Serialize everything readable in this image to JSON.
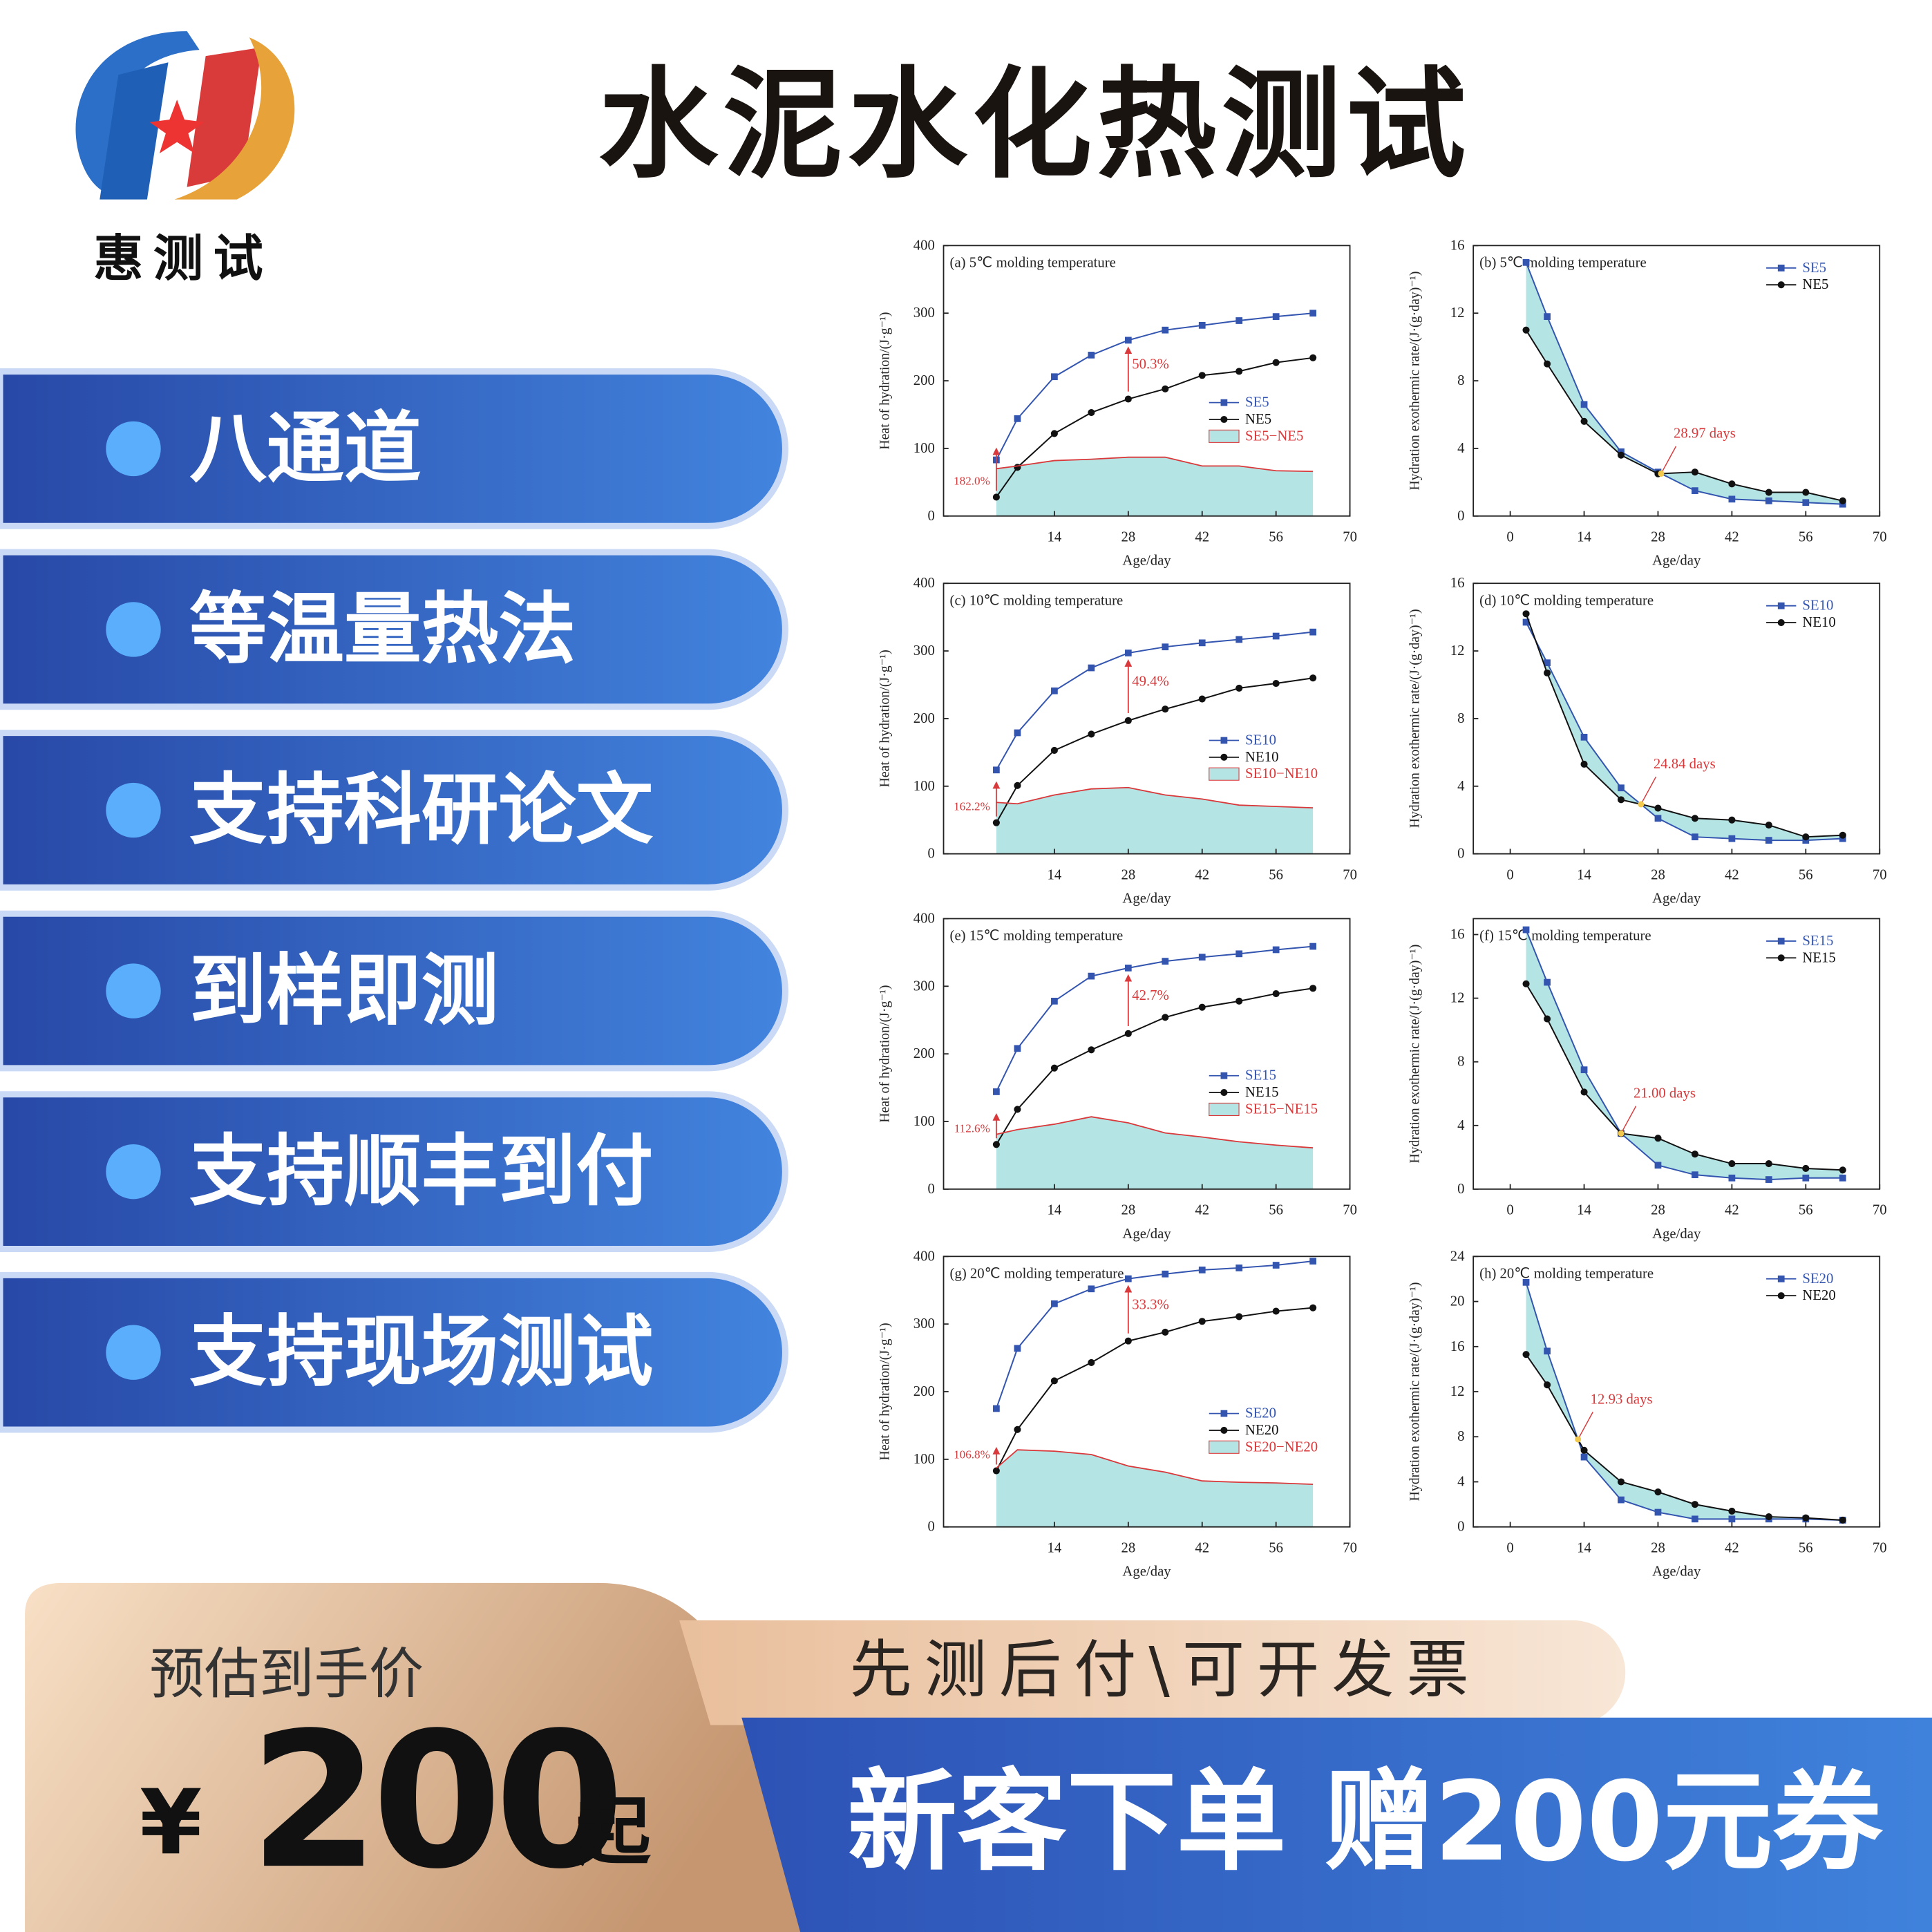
{
  "logo": {
    "text": "惠测试"
  },
  "header": {
    "title": "水泥水化热测试"
  },
  "features": [
    "八通道",
    "等温量热法",
    "支持科研论文",
    "到样即测",
    "支持顺丰到付",
    "支持现场测试"
  ],
  "price": {
    "label": "预估到手价",
    "currency": "¥",
    "amount": 200,
    "suffix": "起"
  },
  "promo": {
    "note": "先测后付\\可开发票",
    "offer": "新客下单 赠200元券"
  },
  "chart_data": [
    {
      "type": "line",
      "title": "(a) 5℃ molding temperature",
      "x_label": "Age/day",
      "y_label": "Heat of hydration/(J·g⁻¹)",
      "x": [
        3,
        7,
        14,
        21,
        28,
        35,
        42,
        49,
        56,
        63
      ],
      "xlim": [
        -7,
        70
      ],
      "xticks": [
        14,
        28,
        42,
        56,
        70
      ],
      "ylim": [
        0,
        400
      ],
      "yticks": [
        0,
        100,
        200,
        300,
        400
      ],
      "legend": "center right",
      "series": [
        {
          "name": "SE5",
          "color": "#3355b0",
          "marker": "square",
          "values": [
            83,
            144,
            206,
            238,
            260,
            275,
            282,
            289,
            295,
            300
          ]
        },
        {
          "name": "NE5",
          "color": "#111111",
          "marker": "circle",
          "values": [
            28,
            72,
            122,
            153,
            173,
            188,
            208,
            214,
            227,
            234
          ]
        },
        {
          "name": "SE5−NE5",
          "color": "#d9393b",
          "fill": "#b5e4e4",
          "kind": "area",
          "values": [
            70,
            74,
            82,
            84,
            87,
            87,
            74,
            74,
            67,
            66
          ]
        }
      ],
      "annotations": [
        "50.3%",
        "182.0%"
      ]
    },
    {
      "type": "line",
      "title": "(b) 5℃ molding temperature",
      "x_label": "Age/day",
      "y_label": "Hydration exothermic rate/(J·(g·day)⁻¹)",
      "x": [
        3,
        7,
        14,
        21,
        28,
        35,
        42,
        49,
        56,
        63
      ],
      "xlim": [
        -7,
        70
      ],
      "xticks": [
        0,
        14,
        28,
        42,
        56,
        70
      ],
      "ylim": [
        0,
        16
      ],
      "yticks": [
        0,
        4,
        8,
        12,
        16
      ],
      "legend": "upper right",
      "fill_between": "#b5e4e4",
      "series": [
        {
          "name": "SE5",
          "color": "#3355b0",
          "marker": "square",
          "values": [
            15.0,
            11.8,
            6.6,
            3.8,
            2.6,
            1.5,
            1.0,
            0.9,
            0.8,
            0.7
          ]
        },
        {
          "name": "NE5",
          "color": "#111111",
          "marker": "circle",
          "values": [
            11.0,
            9.0,
            5.6,
            3.6,
            2.5,
            2.6,
            1.9,
            1.4,
            1.4,
            0.9
          ]
        }
      ],
      "annotations": [
        "28.97 days"
      ]
    },
    {
      "type": "line",
      "title": "(c) 10℃ molding temperature",
      "x_label": "Age/day",
      "y_label": "Heat of hydration/(J·g⁻¹)",
      "x": [
        3,
        7,
        14,
        21,
        28,
        35,
        42,
        49,
        56,
        63
      ],
      "xlim": [
        -7,
        70
      ],
      "xticks": [
        14,
        28,
        42,
        56,
        70
      ],
      "ylim": [
        0,
        400
      ],
      "yticks": [
        0,
        100,
        200,
        300,
        400
      ],
      "legend": "center right",
      "series": [
        {
          "name": "SE10",
          "color": "#3355b0",
          "marker": "square",
          "values": [
            124,
            179,
            241,
            275,
            297,
            306,
            312,
            317,
            322,
            328
          ]
        },
        {
          "name": "NE10",
          "color": "#111111",
          "marker": "circle",
          "values": [
            46,
            101,
            153,
            177,
            197,
            214,
            229,
            245,
            252,
            260
          ]
        },
        {
          "name": "SE10−NE10",
          "color": "#d9393b",
          "fill": "#b5e4e4",
          "kind": "area",
          "values": [
            76,
            74,
            87,
            96,
            98,
            87,
            81,
            72,
            70,
            68
          ]
        }
      ],
      "annotations": [
        "49.4%",
        "162.2%"
      ]
    },
    {
      "type": "line",
      "title": "(d) 10℃ molding temperature",
      "x_label": "Age/day",
      "y_label": "Hydration exothermic rate/(J·(g·day)⁻¹)",
      "x": [
        3,
        7,
        14,
        21,
        28,
        35,
        42,
        49,
        56,
        63
      ],
      "xlim": [
        -7,
        70
      ],
      "xticks": [
        0,
        14,
        28,
        42,
        56,
        70
      ],
      "ylim": [
        0,
        16
      ],
      "yticks": [
        0,
        4,
        8,
        12,
        16
      ],
      "legend": "upper right",
      "fill_between": "#b5e4e4",
      "series": [
        {
          "name": "SE10",
          "color": "#3355b0",
          "marker": "square",
          "values": [
            13.7,
            11.3,
            6.9,
            3.9,
            2.1,
            1.0,
            0.9,
            0.8,
            0.8,
            0.9
          ]
        },
        {
          "name": "NE10",
          "color": "#111111",
          "marker": "circle",
          "values": [
            14.2,
            10.7,
            5.3,
            3.2,
            2.7,
            2.1,
            2.0,
            1.7,
            1.0,
            1.1
          ]
        }
      ],
      "annotations": [
        "24.84 days"
      ]
    },
    {
      "type": "line",
      "title": "(e) 15℃ molding temperature",
      "x_label": "Age/day",
      "y_label": "Heat of hydration/(J·g⁻¹)",
      "x": [
        3,
        7,
        14,
        21,
        28,
        35,
        42,
        49,
        56,
        63
      ],
      "xlim": [
        -7,
        70
      ],
      "xticks": [
        14,
        28,
        42,
        56,
        70
      ],
      "ylim": [
        0,
        400
      ],
      "yticks": [
        0,
        100,
        200,
        300,
        400
      ],
      "legend": "center right",
      "series": [
        {
          "name": "SE15",
          "color": "#3355b0",
          "marker": "square",
          "values": [
            144,
            208,
            278,
            315,
            327,
            337,
            343,
            348,
            354,
            359
          ]
        },
        {
          "name": "NE15",
          "color": "#111111",
          "marker": "circle",
          "values": [
            66,
            118,
            179,
            206,
            230,
            254,
            269,
            278,
            289,
            297
          ]
        },
        {
          "name": "SE15−NE15",
          "color": "#d9393b",
          "fill": "#b5e4e4",
          "kind": "area",
          "values": [
            81,
            88,
            96,
            107,
            98,
            83,
            77,
            70,
            65,
            61
          ]
        }
      ],
      "annotations": [
        "42.7%",
        "112.6%"
      ]
    },
    {
      "type": "line",
      "title": "(f) 15℃ molding temperature",
      "x_label": "Age/day",
      "y_label": "Hydration exothermic rate/(J·(g·day)⁻¹)",
      "x": [
        3,
        7,
        14,
        21,
        28,
        35,
        42,
        49,
        56,
        63
      ],
      "xlim": [
        -7,
        70
      ],
      "xticks": [
        0,
        14,
        28,
        42,
        56,
        70
      ],
      "ylim": [
        0,
        17
      ],
      "yticks": [
        0,
        4,
        8,
        12,
        16
      ],
      "legend": "upper right",
      "fill_between": "#b5e4e4",
      "series": [
        {
          "name": "SE15",
          "color": "#3355b0",
          "marker": "square",
          "values": [
            16.3,
            13.0,
            7.5,
            3.5,
            1.5,
            0.9,
            0.7,
            0.6,
            0.7,
            0.7
          ]
        },
        {
          "name": "NE15",
          "color": "#111111",
          "marker": "circle",
          "values": [
            12.9,
            10.7,
            6.1,
            3.5,
            3.2,
            2.2,
            1.6,
            1.6,
            1.3,
            1.2
          ]
        }
      ],
      "annotations": [
        "21.00 days"
      ]
    },
    {
      "type": "line",
      "title": "(g) 20℃ molding temperature",
      "x_label": "Age/day",
      "y_label": "Heat of hydration/(J·g⁻¹)",
      "x": [
        3,
        7,
        14,
        21,
        28,
        35,
        42,
        49,
        56,
        63
      ],
      "xlim": [
        -7,
        70
      ],
      "xticks": [
        14,
        28,
        42,
        56,
        70
      ],
      "ylim": [
        0,
        400
      ],
      "yticks": [
        0,
        100,
        200,
        300,
        400
      ],
      "legend": "center right",
      "series": [
        {
          "name": "SE20",
          "color": "#3355b0",
          "marker": "square",
          "values": [
            175,
            264,
            330,
            352,
            367,
            374,
            380,
            383,
            387,
            393
          ]
        },
        {
          "name": "NE20",
          "color": "#111111",
          "marker": "circle",
          "values": [
            83,
            144,
            216,
            243,
            275,
            288,
            304,
            311,
            319,
            324
          ]
        },
        {
          "name": "SE20−NE20",
          "color": "#d9393b",
          "fill": "#b5e4e4",
          "kind": "area",
          "values": [
            87,
            114,
            112,
            107,
            90,
            81,
            68,
            66,
            65,
            63
          ]
        }
      ],
      "annotations": [
        "33.3%",
        "106.8%"
      ]
    },
    {
      "type": "line",
      "title": "(h) 20℃ molding temperature",
      "x_label": "Age/day",
      "y_label": "Hydration exothermic rate/(J·(g·day)⁻¹)",
      "x": [
        3,
        7,
        14,
        21,
        28,
        35,
        42,
        49,
        56,
        63
      ],
      "xlim": [
        -7,
        70
      ],
      "xticks": [
        0,
        14,
        28,
        42,
        56,
        70
      ],
      "ylim": [
        0,
        24
      ],
      "yticks": [
        0,
        4,
        8,
        12,
        16,
        20,
        24
      ],
      "legend": "upper right",
      "fill_between": "#b5e4e4",
      "series": [
        {
          "name": "SE20",
          "color": "#3355b0",
          "marker": "square",
          "values": [
            21.7,
            15.6,
            6.2,
            2.4,
            1.3,
            0.7,
            0.7,
            0.7,
            0.7,
            0.6
          ]
        },
        {
          "name": "NE20",
          "color": "#111111",
          "marker": "circle",
          "values": [
            15.3,
            12.6,
            6.8,
            4.0,
            3.1,
            2.0,
            1.4,
            0.9,
            0.8,
            0.6
          ]
        }
      ],
      "annotations": [
        "12.93 days"
      ]
    }
  ]
}
